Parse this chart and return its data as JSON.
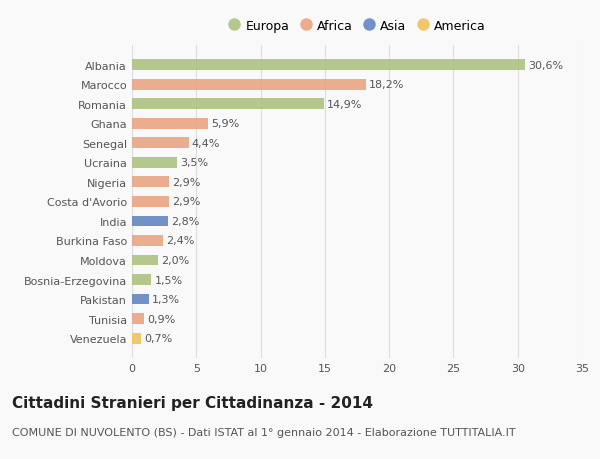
{
  "categories": [
    "Albania",
    "Marocco",
    "Romania",
    "Ghana",
    "Senegal",
    "Ucraina",
    "Nigeria",
    "Costa d'Avorio",
    "India",
    "Burkina Faso",
    "Moldova",
    "Bosnia-Erzegovina",
    "Pakistan",
    "Tunisia",
    "Venezuela"
  ],
  "values": [
    30.6,
    18.2,
    14.9,
    5.9,
    4.4,
    3.5,
    2.9,
    2.9,
    2.8,
    2.4,
    2.0,
    1.5,
    1.3,
    0.9,
    0.7
  ],
  "labels": [
    "30,6%",
    "18,2%",
    "14,9%",
    "5,9%",
    "4,4%",
    "3,5%",
    "2,9%",
    "2,9%",
    "2,8%",
    "2,4%",
    "2,0%",
    "1,5%",
    "1,3%",
    "0,9%",
    "0,7%"
  ],
  "continents": [
    "Europa",
    "Africa",
    "Europa",
    "Africa",
    "Africa",
    "Europa",
    "Africa",
    "Africa",
    "Asia",
    "Africa",
    "Europa",
    "Europa",
    "Asia",
    "Africa",
    "America"
  ],
  "colors": {
    "Europa": "#a8c07a",
    "Africa": "#e8a07a",
    "Asia": "#5b7fbf",
    "America": "#f0c050"
  },
  "legend_order": [
    "Europa",
    "Africa",
    "Asia",
    "America"
  ],
  "title": "Cittadini Stranieri per Cittadinanza - 2014",
  "subtitle": "COMUNE DI NUVOLENTO (BS) - Dati ISTAT al 1° gennaio 2014 - Elaborazione TUTTITALIA.IT",
  "xlim": [
    0,
    35
  ],
  "xticks": [
    0,
    5,
    10,
    15,
    20,
    25,
    30,
    35
  ],
  "background_color": "#f9f9f9",
  "grid_color": "#dddddd",
  "title_fontsize": 11,
  "subtitle_fontsize": 8,
  "label_fontsize": 8,
  "tick_fontsize": 8,
  "legend_fontsize": 9
}
